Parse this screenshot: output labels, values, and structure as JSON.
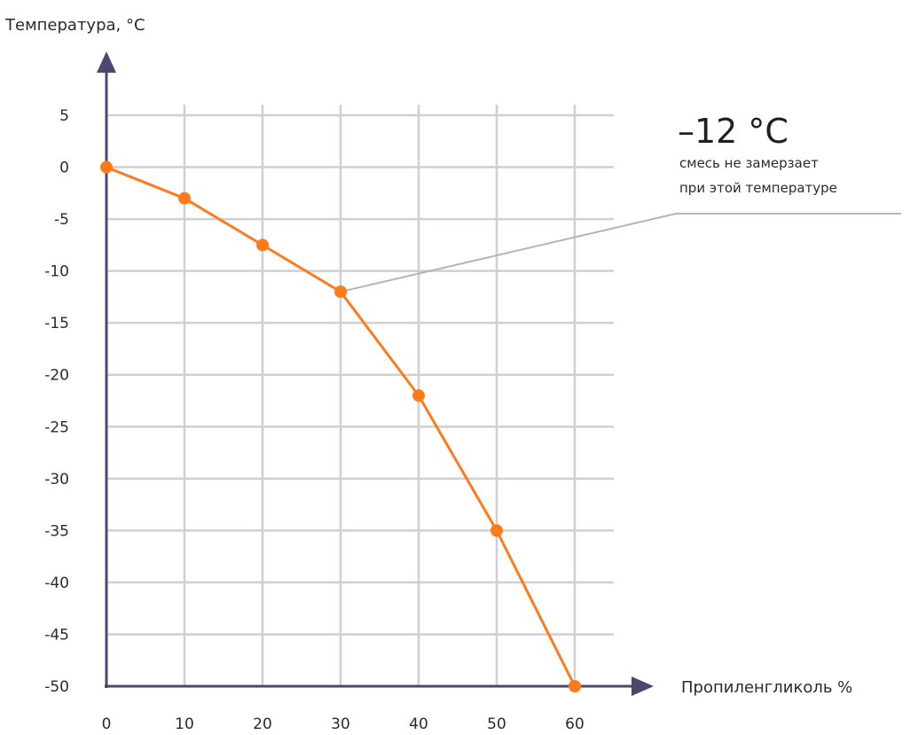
{
  "chart_data": {
    "type": "line",
    "xlabel": "Пропиленгликоль %",
    "ylabel": "Температура, °С",
    "x": [
      0,
      10,
      20,
      30,
      40,
      50,
      60
    ],
    "series": [
      {
        "values": [
          0,
          -3,
          -7.5,
          -12,
          -22,
          -35,
          -50
        ]
      }
    ],
    "xticks": [
      "0",
      "10",
      "20",
      "30",
      "40",
      "50",
      "60"
    ],
    "yticks": [
      "5",
      "0",
      "-5",
      "-10",
      "-15",
      "-20",
      "-25",
      "-30",
      "-35",
      "-40",
      "-45",
      "-50"
    ],
    "xlim": [
      0,
      65
    ],
    "ylim": [
      -50,
      5
    ],
    "grid": true,
    "annotation": {
      "value": "–12 °C",
      "line1": "смесь не замерзает",
      "line2": "при этой температуре",
      "point_x": 30,
      "point_y": -12
    },
    "colors": {
      "line": "#ff7a1a",
      "axis": "#4b4870",
      "grid": "#cfcfd4",
      "leader": "#b5b5b5"
    }
  }
}
